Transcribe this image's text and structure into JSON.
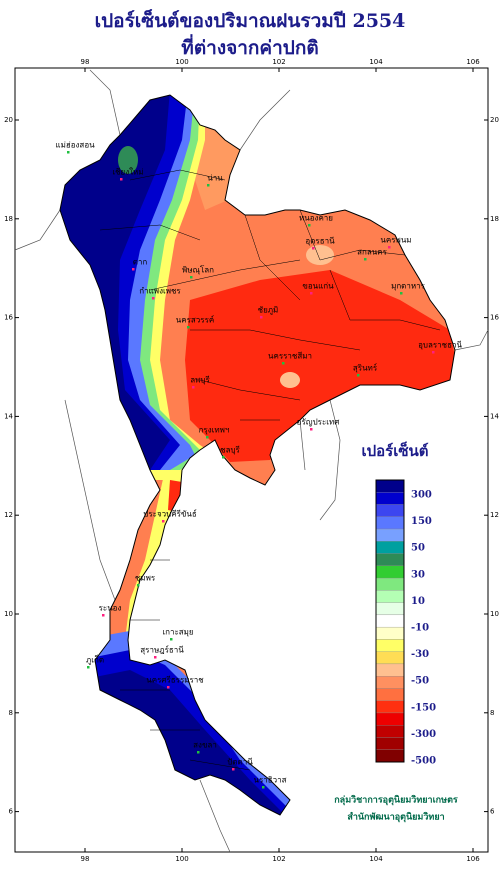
{
  "title": [
    "เปอร์เซ็นต์ของปริมาณฝนรวมปี 2554",
    "ที่ต่างจากค่าปกติ"
  ],
  "map": {
    "lon_ticks": [
      98,
      100,
      102,
      104,
      106
    ],
    "lat_ticks": [
      20,
      18,
      16,
      14,
      12,
      10,
      8,
      6
    ]
  },
  "legend": {
    "title": "เปอร์เซ็นต์",
    "ticks": [
      300,
      150,
      50,
      30,
      10,
      -10,
      -30,
      -50,
      -150,
      -300,
      -500
    ],
    "colors": [
      "#00008b",
      "#0000cd",
      "#3c46f0",
      "#5a78ff",
      "#78a0ff",
      "#00a0a0",
      "#2e8b57",
      "#32cd32",
      "#7fe87f",
      "#b4ffb4",
      "#e6ffe6",
      "#ffffff",
      "#ffffc8",
      "#ffff66",
      "#ffdd55",
      "#ffc090",
      "#ff9060",
      "#ff7040",
      "#ff3010",
      "#ee0000",
      "#c00000",
      "#a00000",
      "#800000"
    ]
  },
  "places": [
    "แม่ฮ่องสอน",
    "เชียงใหม่",
    "น่าน",
    "ตาก",
    "พิษณุโลก",
    "กำแพงเพชร",
    "หนองคาย",
    "อุดรธานี",
    "สกลนคร",
    "นครพนม",
    "มุกดาหาร",
    "ขอนแก่น",
    "นครสวรรค์",
    "ชัยภูมิ",
    "นครราชสีมา",
    "อุบลราชธานี",
    "สุรินทร์",
    "ลพบุรี",
    "กรุงเทพฯ",
    "อรัญประเทศ",
    "ชลบุรี",
    "ประจวบคีรีขันธ์",
    "ชุมพร",
    "ระนอง",
    "เกาะสมุย",
    "สุราษฎร์ธานี",
    "ภูเก็ต",
    "นครศรีธรรมราช",
    "สงขลา",
    "ปัตตานี",
    "นราธิวาส"
  ],
  "credit": [
    "กลุ่มวิชาการอุตุนิยมวิทยาเกษตร",
    "สำนักพัฒนาอุตุนิยมวิทยา"
  ]
}
